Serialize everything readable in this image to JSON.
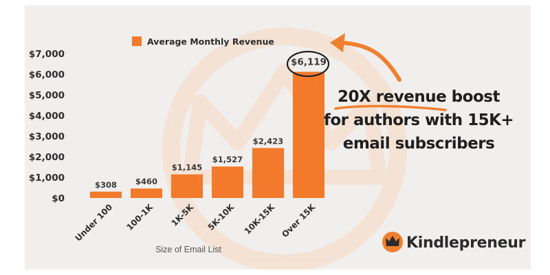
{
  "colors": {
    "bar": "#f27a2a",
    "accent": "#f0802e",
    "background": "#f1efed",
    "watermark": "#f7d9c2"
  },
  "chart_data": {
    "type": "bar",
    "categories": [
      "Under 100",
      "100-1K",
      "1K-5K",
      "5K-10K",
      "10K-15K",
      "Over 15K"
    ],
    "series": [
      {
        "name": "Average Monthly Revenue",
        "values": [
          308,
          460,
          1145,
          1527,
          2423,
          6119
        ],
        "data_labels": [
          "$308",
          "$460",
          "$1,145",
          "$1,527",
          "$2,423",
          "$6,119"
        ]
      }
    ],
    "xlabel": "Size of Email List",
    "ylabel": "",
    "ylim": [
      0,
      7000
    ],
    "yticks": [
      0,
      1000,
      2000,
      3000,
      4000,
      5000,
      6000,
      7000
    ],
    "ytick_labels": [
      "$0",
      "$1,000",
      "$2,000",
      "$3,000",
      "$4,000",
      "$5,000",
      "$6,000",
      "$7,000"
    ],
    "grid": false,
    "legend_position": "top"
  },
  "callout": {
    "lines": [
      "20X revenue boost",
      "for authors with 15K+",
      "email subscribers"
    ],
    "highlighted_bar": "Over 15K",
    "icon": "curved-arrow-icon"
  },
  "brand": {
    "name": "Kindlepreneur",
    "icon": "crown-logo-icon"
  }
}
